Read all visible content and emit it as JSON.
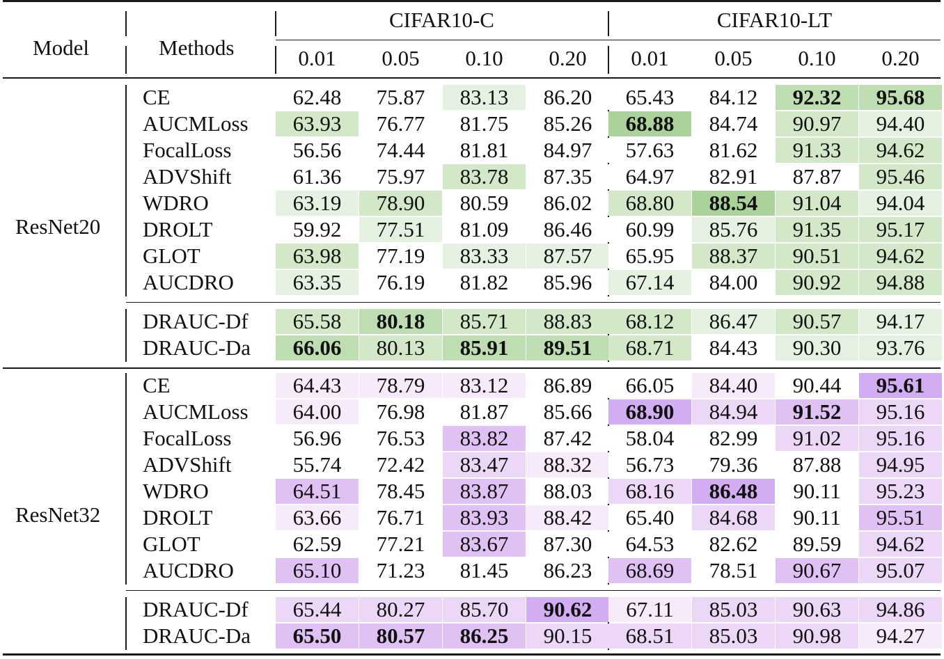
{
  "header": {
    "model": "Model",
    "methods": "Methods",
    "groups": [
      "CIFAR10-C",
      "CIFAR10-LT"
    ],
    "ratios": [
      "0.01",
      "0.05",
      "0.10",
      "0.20",
      "0.01",
      "0.05",
      "0.10",
      "0.20"
    ]
  },
  "palette": {
    "green": [
      "#ffffff",
      "#e6f2e1",
      "#d2e8c8",
      "#bfddb2",
      "#acd29c"
    ],
    "purple": [
      "#ffffff",
      "#f7ebfb",
      "#ecd7f7",
      "#dfc1f4",
      "#d2adf1"
    ]
  },
  "blocks": [
    {
      "model": "ResNet20",
      "color": "green",
      "rows": [
        {
          "method": "CE",
          "values": [
            "62.48",
            "75.87",
            "83.13",
            "86.20",
            "65.43",
            "84.12",
            "92.32",
            "95.68"
          ],
          "shade": [
            0,
            0,
            1,
            0,
            0,
            0,
            3,
            3
          ],
          "bold": [
            0,
            0,
            0,
            0,
            0,
            0,
            1,
            1
          ]
        },
        {
          "method": "AUCMLoss",
          "values": [
            "63.93",
            "76.77",
            "81.75",
            "85.26",
            "68.88",
            "84.74",
            "90.97",
            "94.40"
          ],
          "shade": [
            2,
            0,
            0,
            0,
            4,
            0,
            2,
            1
          ],
          "bold": [
            0,
            0,
            0,
            0,
            1,
            0,
            0,
            0
          ]
        },
        {
          "method": "FocalLoss",
          "values": [
            "56.56",
            "74.44",
            "81.81",
            "84.97",
            "57.63",
            "81.62",
            "91.33",
            "94.62"
          ],
          "shade": [
            0,
            0,
            0,
            0,
            0,
            0,
            2,
            2
          ],
          "bold": [
            0,
            0,
            0,
            0,
            0,
            0,
            0,
            0
          ]
        },
        {
          "method": "ADVShift",
          "values": [
            "61.36",
            "75.97",
            "83.78",
            "87.35",
            "64.97",
            "82.91",
            "87.87",
            "95.46"
          ],
          "shade": [
            0,
            0,
            2,
            0,
            0,
            0,
            0,
            2
          ],
          "bold": [
            0,
            0,
            0,
            0,
            0,
            0,
            0,
            0
          ]
        },
        {
          "method": "WDRO",
          "values": [
            "63.19",
            "78.90",
            "80.59",
            "86.02",
            "68.80",
            "88.54",
            "91.04",
            "94.04"
          ],
          "shade": [
            1,
            2,
            0,
            0,
            2,
            4,
            2,
            1
          ],
          "bold": [
            0,
            0,
            0,
            0,
            0,
            1,
            0,
            0
          ]
        },
        {
          "method": "DROLT",
          "values": [
            "59.92",
            "77.51",
            "81.09",
            "86.46",
            "60.99",
            "85.76",
            "91.35",
            "95.17"
          ],
          "shade": [
            0,
            1,
            0,
            0,
            0,
            1,
            2,
            2
          ],
          "bold": [
            0,
            0,
            0,
            0,
            0,
            0,
            0,
            0
          ]
        },
        {
          "method": "GLOT",
          "values": [
            "63.98",
            "77.19",
            "83.33",
            "87.57",
            "65.95",
            "88.37",
            "90.51",
            "94.62"
          ],
          "shade": [
            2,
            0,
            1,
            1,
            0,
            2,
            2,
            2
          ],
          "bold": [
            0,
            0,
            0,
            0,
            0,
            0,
            0,
            0
          ]
        },
        {
          "method": "AUCDRO",
          "values": [
            "63.35",
            "76.19",
            "81.82",
            "85.96",
            "67.14",
            "84.00",
            "90.92",
            "94.88"
          ],
          "shade": [
            1,
            0,
            0,
            0,
            1,
            0,
            2,
            2
          ],
          "bold": [
            0,
            0,
            0,
            0,
            0,
            0,
            0,
            0
          ]
        },
        {
          "method": "DRAUC-Df",
          "values": [
            "65.58",
            "80.18",
            "85.71",
            "88.83",
            "68.12",
            "86.47",
            "90.57",
            "94.17"
          ],
          "shade": [
            2,
            3,
            2,
            2,
            2,
            1,
            2,
            1
          ],
          "bold": [
            0,
            1,
            0,
            0,
            0,
            0,
            0,
            0
          ]
        },
        {
          "method": "DRAUC-Da",
          "values": [
            "66.06",
            "80.13",
            "85.91",
            "89.51",
            "68.71",
            "84.43",
            "90.30",
            "93.76"
          ],
          "shade": [
            3,
            2,
            3,
            3,
            2,
            0,
            1,
            1
          ],
          "bold": [
            1,
            0,
            1,
            1,
            0,
            0,
            0,
            0
          ]
        }
      ]
    },
    {
      "model": "ResNet32",
      "color": "purple",
      "rows": [
        {
          "method": "CE",
          "values": [
            "64.43",
            "78.79",
            "83.12",
            "86.89",
            "66.05",
            "84.40",
            "90.44",
            "95.61"
          ],
          "shade": [
            1,
            1,
            1,
            0,
            0,
            1,
            0,
            4
          ],
          "bold": [
            0,
            0,
            0,
            0,
            0,
            0,
            0,
            1
          ]
        },
        {
          "method": "AUCMLoss",
          "values": [
            "64.00",
            "76.98",
            "81.87",
            "85.66",
            "68.90",
            "84.94",
            "91.52",
            "95.16"
          ],
          "shade": [
            1,
            0,
            0,
            0,
            4,
            2,
            3,
            2
          ],
          "bold": [
            0,
            0,
            0,
            0,
            1,
            0,
            1,
            0
          ]
        },
        {
          "method": "FocalLoss",
          "values": [
            "56.96",
            "76.53",
            "83.82",
            "87.42",
            "58.04",
            "82.99",
            "91.02",
            "95.16"
          ],
          "shade": [
            0,
            0,
            3,
            0,
            0,
            0,
            2,
            2
          ],
          "bold": [
            0,
            0,
            0,
            0,
            0,
            0,
            0,
            0
          ]
        },
        {
          "method": "ADVShift",
          "values": [
            "55.74",
            "72.42",
            "83.47",
            "88.32",
            "56.73",
            "79.36",
            "87.88",
            "94.95"
          ],
          "shade": [
            0,
            0,
            2,
            1,
            0,
            0,
            0,
            2
          ],
          "bold": [
            0,
            0,
            0,
            0,
            0,
            0,
            0,
            0
          ]
        },
        {
          "method": "WDRO",
          "values": [
            "64.51",
            "78.45",
            "83.87",
            "88.03",
            "68.16",
            "86.48",
            "90.11",
            "95.23"
          ],
          "shade": [
            3,
            0,
            3,
            0,
            2,
            4,
            0,
            2
          ],
          "bold": [
            0,
            0,
            0,
            0,
            0,
            1,
            0,
            0
          ]
        },
        {
          "method": "DROLT",
          "values": [
            "63.66",
            "76.71",
            "83.93",
            "88.42",
            "65.40",
            "84.68",
            "90.11",
            "95.51"
          ],
          "shade": [
            1,
            0,
            3,
            1,
            0,
            2,
            0,
            3
          ],
          "bold": [
            0,
            0,
            0,
            0,
            0,
            0,
            0,
            0
          ]
        },
        {
          "method": "GLOT",
          "values": [
            "62.59",
            "77.21",
            "83.67",
            "87.30",
            "64.53",
            "82.62",
            "89.59",
            "94.62"
          ],
          "shade": [
            0,
            0,
            3,
            0,
            0,
            0,
            0,
            2
          ],
          "bold": [
            0,
            0,
            0,
            0,
            0,
            0,
            0,
            0
          ]
        },
        {
          "method": "AUCDRO",
          "values": [
            "65.10",
            "71.23",
            "81.45",
            "86.23",
            "68.69",
            "78.51",
            "90.67",
            "95.07"
          ],
          "shade": [
            3,
            0,
            0,
            0,
            3,
            0,
            3,
            2
          ],
          "bold": [
            0,
            0,
            0,
            0,
            0,
            0,
            0,
            0
          ]
        },
        {
          "method": "DRAUC-Df",
          "values": [
            "65.44",
            "80.27",
            "85.70",
            "90.62",
            "67.11",
            "85.03",
            "90.63",
            "94.86"
          ],
          "shade": [
            2,
            2,
            2,
            4,
            1,
            2,
            2,
            2
          ],
          "bold": [
            0,
            0,
            0,
            1,
            0,
            0,
            0,
            0
          ]
        },
        {
          "method": "DRAUC-Da",
          "values": [
            "65.50",
            "80.57",
            "86.25",
            "90.15",
            "68.51",
            "85.03",
            "90.98",
            "94.27"
          ],
          "shade": [
            3,
            3,
            3,
            2,
            2,
            2,
            2,
            1
          ],
          "bold": [
            1,
            1,
            1,
            0,
            0,
            0,
            0,
            0
          ]
        }
      ]
    }
  ]
}
